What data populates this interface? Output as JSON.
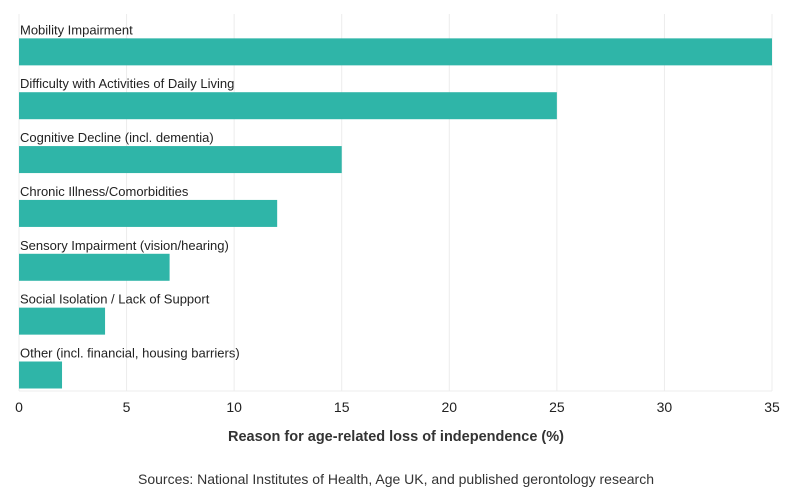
{
  "chart_data": {
    "type": "bar",
    "orientation": "horizontal",
    "categories": [
      "Mobility Impairment",
      "Difficulty with Activities of Daily Living",
      "Cognitive Decline (incl. dementia)",
      "Chronic Illness/Comorbidities",
      "Sensory Impairment (vision/hearing)",
      "Social Isolation / Lack of Support",
      "Other (incl. financial, housing barriers)"
    ],
    "values": [
      35,
      25,
      15,
      12,
      7,
      4,
      2
    ],
    "xlabel": "Reason for age-related loss of independence (%)",
    "xlim": [
      0,
      35
    ],
    "xticks": [
      0,
      5,
      10,
      15,
      20,
      25,
      30,
      35
    ],
    "grid": true,
    "bar_color": "#2fb5a8"
  },
  "source_note": "Sources: National Institutes of Health, Age UK, and published gerontology research"
}
